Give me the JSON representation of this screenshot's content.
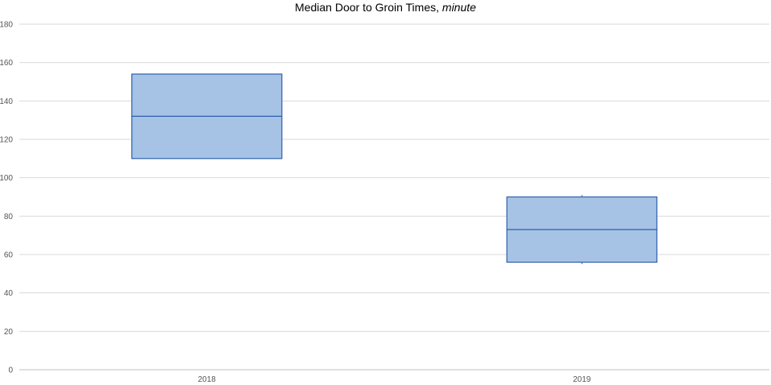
{
  "chart_data": {
    "type": "box",
    "title": "Median Door to Groin Times, ",
    "title_emphasis": "minute",
    "xlabel": "",
    "ylabel": "",
    "ylim": [
      0,
      180
    ],
    "y_ticks": [
      0,
      20,
      40,
      60,
      80,
      100,
      120,
      140,
      160,
      180
    ],
    "grid": true,
    "categories": [
      "2018",
      "2019"
    ],
    "boxes": [
      {
        "category": "2018",
        "q1": 110,
        "median": 132,
        "q3": 154,
        "whisker_low": 110,
        "whisker_high": 154
      },
      {
        "category": "2019",
        "q1": 56,
        "median": 73,
        "q3": 90,
        "whisker_low": 55,
        "whisker_high": 91
      }
    ],
    "colors": {
      "box_fill": "#a6c3e6",
      "box_stroke": "#2f5fad",
      "grid": "#d9d9d9",
      "axis": "#bfbfbf"
    }
  }
}
